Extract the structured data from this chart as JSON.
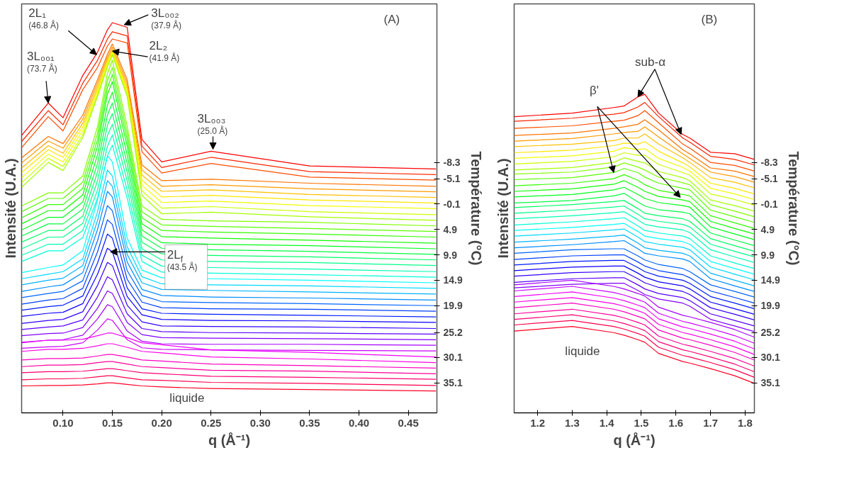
{
  "chart_data": [
    {
      "type": "line",
      "xlabel": "q (Å⁻¹)",
      "ylabel": "Température (°C)",
      "y2label": "Intensité (U.A.)",
      "x": [
        0.058,
        0.085,
        0.1,
        0.12,
        0.135,
        0.145,
        0.15,
        0.165,
        0.18,
        0.2,
        0.25,
        0.35,
        0.478
      ],
      "xlim": [
        0.058,
        0.479
      ],
      "xticks": [
        {
          "value": 0.1,
          "label": "0.10"
        },
        0.15,
        {
          "value": 0.2,
          "label": "0.20"
        },
        0.25,
        {
          "value": 0.3,
          "label": "0.30"
        },
        0.35,
        {
          "value": 0.4,
          "label": "0.40"
        },
        0.45
      ],
      "ylim": [
        41.0,
        -39.5
      ],
      "yticks": [
        -8.3,
        -5.1,
        -0.1,
        4.9,
        9.9,
        14.9,
        19.9,
        25.2,
        30.1,
        35.1
      ],
      "annotations": [
        {
          "text": "3L₀₀₁\n(73.7 Å)",
          "x": 0.085,
          "y": -20.0
        },
        {
          "text": "2L₁\n(46.8 Å)",
          "x": 0.134,
          "y": -29.5
        },
        {
          "text": "3L₀₀₂\n(37.9 Å)",
          "x": 0.162,
          "y": -35.4
        },
        {
          "text": "2L₂\n(41.9 Å)",
          "x": 0.15,
          "y": -30.2
        },
        {
          "text": "3L₀₀₃\n(25.0 Å)",
          "x": 0.252,
          "y": -10.9
        },
        {
          "text": "2L$_{f}$\n(43.5 Å)",
          "x": 0.148,
          "y": 9.3
        },
        "liquide",
        "(A)"
      ],
      "series": [
        {
          "color": "#ff0000",
          "values": [
            -13.6,
            -20.0,
            -17.1,
            -25.4,
            -30.0,
            -34.4,
            -35.8,
            -34.9,
            -12.8,
            -8.4,
            -10.5,
            -7.6,
            -7.0
          ]
        },
        {
          "color": "#ff2600",
          "values": [
            -12.4,
            -18.5,
            -15.7,
            -23.9,
            -28.4,
            -32.6,
            -34.0,
            -33.2,
            -11.5,
            -7.3,
            -9.3,
            -6.5,
            -5.9
          ]
        },
        {
          "color": "#ff4d00",
          "values": [
            -11.2,
            -17.3,
            -14.5,
            -22.6,
            -27.0,
            -31.2,
            -32.6,
            -31.8,
            -10.4,
            -6.2,
            -8.1,
            -5.4,
            -4.8
          ]
        },
        {
          "color": "#ff7300",
          "values": [
            -9.2,
            -13.4,
            -12.0,
            -17.6,
            -24.6,
            -29.6,
            -31.6,
            -24.6,
            -7.8,
            -4.7,
            -5.0,
            -4.2,
            -3.6
          ]
        },
        {
          "color": "#ff9900",
          "values": [
            -8.2,
            -12.5,
            -11.1,
            -16.8,
            -23.9,
            -29.0,
            -31.0,
            -23.9,
            -6.8,
            -3.6,
            -3.9,
            -3.1,
            -2.5
          ]
        },
        {
          "color": "#ffbf00",
          "values": [
            -7.2,
            -11.6,
            -10.1,
            -16.0,
            -23.2,
            -28.5,
            -30.5,
            -23.2,
            -5.8,
            -2.6,
            -2.9,
            -2.0,
            -1.4
          ]
        },
        {
          "color": "#ffe600",
          "values": [
            -6.3,
            -10.8,
            -9.3,
            -15.3,
            -22.7,
            -28.1,
            -30.2,
            -22.7,
            -4.8,
            -1.5,
            -1.8,
            -0.9,
            -0.3
          ]
        },
        {
          "color": "#f2ff00",
          "values": [
            -5.3,
            -9.9,
            -8.4,
            -14.6,
            -22.2,
            -27.8,
            -29.9,
            -22.2,
            -3.8,
            -0.4,
            -0.7,
            0.2,
            0.8
          ]
        },
        {
          "color": "#ccff00",
          "values": [
            -4.3,
            -9.1,
            -7.5,
            -13.8,
            -21.7,
            -27.4,
            -29.6,
            -21.7,
            -2.7,
            0.7,
            0.4,
            1.4,
            2.0
          ]
        },
        {
          "color": "#a6ff00",
          "values": [
            -3.4,
            -8.3,
            -6.7,
            -13.2,
            -21.3,
            -27.1,
            -29.4,
            -21.3,
            -1.8,
            1.8,
            1.5,
            2.4,
            3.1
          ]
        },
        {
          "color": "#80ff00",
          "values": [
            0.3,
            -2.3,
            -2.3,
            -5.6,
            -15.4,
            -25.8,
            -28.4,
            -15.4,
            0.3,
            2.9,
            3.2,
            3.5,
            4.2
          ]
        },
        {
          "color": "#59ff00",
          "values": [
            1.4,
            -1.2,
            -1.2,
            -4.4,
            -14.1,
            -24.4,
            -27.0,
            -14.1,
            1.4,
            4.0,
            4.3,
            4.7,
            5.3
          ]
        },
        {
          "color": "#33ff00",
          "values": [
            2.6,
            0.0,
            0.0,
            -3.2,
            -12.8,
            -23.0,
            -25.6,
            -12.8,
            2.6,
            5.1,
            5.4,
            5.8,
            6.4
          ]
        },
        {
          "color": "#0dff00",
          "values": [
            3.8,
            1.2,
            1.2,
            -1.9,
            -11.5,
            -21.7,
            -24.2,
            -11.5,
            3.8,
            6.3,
            6.6,
            7.0,
            7.6
          ]
        },
        {
          "color": "#00ff1a",
          "values": [
            5.0,
            2.5,
            2.5,
            -0.5,
            -9.8,
            -19.6,
            -22.1,
            -9.8,
            5.0,
            7.5,
            7.8,
            8.1,
            8.7
          ]
        },
        {
          "color": "#00ff40",
          "values": [
            6.2,
            3.8,
            3.8,
            0.9,
            -8.1,
            -17.6,
            -20.0,
            -8.1,
            6.2,
            8.6,
            8.9,
            9.2,
            9.8
          ]
        },
        {
          "color": "#00ff66",
          "values": [
            7.4,
            5.1,
            5.1,
            2.3,
            -6.4,
            -15.6,
            -17.9,
            -6.4,
            7.4,
            9.7,
            10.0,
            10.3,
            10.9
          ]
        },
        {
          "color": "#00ff8c",
          "values": [
            8.7,
            6.4,
            6.4,
            3.7,
            -4.7,
            -13.6,
            -15.8,
            -4.7,
            8.7,
            10.9,
            11.2,
            11.4,
            12.0
          ]
        },
        {
          "color": "#00ffb3",
          "values": [
            10.0,
            7.8,
            7.8,
            5.1,
            -2.9,
            -11.5,
            -13.7,
            -2.9,
            10.0,
            12.1,
            12.4,
            12.7,
            13.2
          ]
        },
        {
          "color": "#00ffd9",
          "values": [
            11.2,
            9.1,
            9.1,
            6.5,
            -1.3,
            -9.6,
            -11.7,
            -1.3,
            11.2,
            13.3,
            13.5,
            13.8,
            14.3
          ]
        },
        {
          "color": "#00ffff",
          "values": [
            13.4,
            12.4,
            11.9,
            9.1,
            -0.9,
            -9.6,
            -8.4,
            6.6,
            12.9,
            14.4,
            14.6,
            14.9,
            15.4
          ]
        },
        {
          "color": "#00d9ff",
          "values": [
            14.6,
            13.7,
            13.2,
            10.7,
            1.4,
            -6.8,
            -5.6,
            8.3,
            14.2,
            15.6,
            15.8,
            16.0,
            16.5
          ]
        },
        {
          "color": "#00b3ff",
          "values": [
            15.8,
            14.9,
            14.5,
            12.0,
            3.1,
            -4.7,
            -3.6,
            9.8,
            15.4,
            16.7,
            16.9,
            17.2,
            17.6
          ]
        },
        {
          "color": "#008cff",
          "values": [
            17.1,
            16.2,
            15.8,
            13.4,
            4.9,
            -2.6,
            -1.5,
            11.3,
            16.7,
            17.9,
            18.2,
            18.4,
            18.8
          ]
        },
        {
          "color": "#0066ff",
          "values": [
            18.3,
            17.5,
            17.1,
            15.0,
            7.1,
            0.2,
            1.2,
            13.0,
            17.9,
            19.1,
            19.3,
            19.5,
            19.9
          ]
        },
        {
          "color": "#0040ff",
          "values": [
            19.6,
            18.8,
            18.5,
            16.5,
            9.3,
            3.0,
            3.9,
            14.7,
            19.2,
            20.3,
            20.5,
            20.6,
            21.0
          ]
        },
        {
          "color": "#001aff",
          "values": [
            20.8,
            20.1,
            19.8,
            18.0,
            11.5,
            5.8,
            6.6,
            16.4,
            20.5,
            21.4,
            21.6,
            21.8,
            22.1
          ]
        },
        {
          "color": "#0d00ff",
          "values": [
            22.0,
            21.4,
            21.2,
            19.5,
            13.7,
            8.6,
            9.3,
            18.1,
            21.7,
            22.6,
            22.8,
            22.9,
            23.2
          ]
        },
        {
          "color": "#3300ff",
          "values": [
            23.4,
            22.8,
            22.6,
            21.1,
            15.9,
            11.4,
            12.0,
            19.8,
            23.1,
            23.9,
            24.0,
            24.1,
            24.4
          ]
        },
        {
          "color": "#5900ff",
          "values": [
            24.6,
            24.1,
            23.9,
            22.7,
            18.2,
            14.2,
            14.8,
            21.5,
            24.4,
            25.0,
            25.2,
            25.3,
            25.5
          ]
        },
        {
          "color": "#8000ff",
          "values": [
            25.8,
            25.4,
            25.3,
            24.2,
            20.4,
            17.0,
            17.5,
            23.2,
            25.6,
            26.2,
            26.3,
            26.4,
            26.6
          ]
        },
        {
          "color": "#a600ff",
          "values": [
            27.1,
            26.7,
            26.6,
            25.7,
            22.5,
            19.7,
            20.1,
            24.9,
            26.9,
            27.4,
            27.5,
            27.5,
            27.7
          ]
        },
        {
          "color": "#cc00ff",
          "values": [
            28.3,
            28.0,
            27.9,
            27.2,
            24.7,
            22.5,
            22.8,
            26.6,
            28.2,
            28.5,
            28.6,
            28.7,
            28.8
          ]
        },
        {
          "color": "#f200ff",
          "values": [
            27.2,
            26.7,
            26.7,
            26.5,
            25.8,
            25.3,
            25.3,
            26.2,
            27.2,
            27.6,
            28.6,
            29.1,
            30.0
          ]
        },
        {
          "color": "#ff00e6",
          "values": [
            28.9,
            28.5,
            28.5,
            28.3,
            27.8,
            27.4,
            27.4,
            28.1,
            28.9,
            29.2,
            30.0,
            30.4,
            31.1
          ]
        },
        {
          "color": "#ff00bf",
          "values": [
            30.6,
            30.3,
            30.3,
            30.2,
            29.8,
            29.5,
            29.5,
            30.0,
            30.6,
            30.8,
            31.4,
            31.7,
            32.2
          ]
        },
        {
          "color": "#ff0099",
          "values": [
            31.9,
            31.6,
            31.6,
            31.5,
            31.1,
            30.9,
            30.9,
            31.4,
            31.9,
            32.1,
            32.6,
            32.8,
            33.3
          ]
        },
        {
          "color": "#ff0073",
          "values": [
            33.1,
            32.9,
            32.9,
            32.8,
            32.5,
            32.3,
            32.3,
            32.7,
            33.1,
            33.3,
            33.8,
            34.0,
            34.4
          ]
        },
        {
          "color": "#ff004d",
          "values": [
            34.5,
            34.3,
            34.3,
            34.2,
            33.9,
            33.7,
            33.7,
            34.1,
            34.5,
            34.6,
            35.0,
            35.2,
            35.6
          ]
        },
        {
          "color": "#ff0026",
          "values": [
            35.7,
            35.6,
            35.6,
            35.5,
            35.3,
            35.1,
            35.1,
            35.4,
            35.7,
            35.9,
            36.2,
            36.4,
            36.7
          ]
        }
      ]
    },
    {
      "type": "line",
      "xlabel": "q (Å⁻¹)",
      "ylabel": "Température (°C)",
      "y2label": "Intensité (U.A.)",
      "x": [
        1.132,
        1.3,
        1.42,
        1.45,
        1.49,
        1.51,
        1.55,
        1.62,
        1.64,
        1.7,
        1.77,
        1.827
      ],
      "xlim": [
        1.132,
        1.827
      ],
      "xticks": [
        1.2,
        1.3,
        1.4,
        1.5,
        1.6,
        1.7,
        1.8
      ],
      "ylim": [
        41.0,
        -39.5
      ],
      "yticks": [
        -8.3,
        -5.1,
        -0.1,
        4.9,
        9.9,
        14.9,
        19.9,
        25.2,
        30.1,
        35.1
      ],
      "annotations": [
        {
          "text": "sub-α",
          "x": 1.49,
          "y": -21.2
        },
        {
          "text": "β'",
          "x": 1.42,
          "y": -6.3
        },
        "liquide",
        "(B)"
      ],
      "series": [
        {
          "color": "#ff0000",
          "values": [
            -17.3,
            -18.0,
            -19.1,
            -19.4,
            -21.2,
            -21.7,
            -18.0,
            -13.8,
            -13.1,
            -10.3,
            -10.0,
            -8.9
          ]
        },
        {
          "color": "#ff2600",
          "values": [
            -16.4,
            -17.0,
            -17.8,
            -18.1,
            -19.2,
            -20.1,
            -17.3,
            -13.1,
            -12.3,
            -9.5,
            -8.9,
            -7.8
          ]
        },
        {
          "color": "#ff4d00",
          "values": [
            -15.0,
            -15.5,
            -16.4,
            -16.6,
            -17.5,
            -18.5,
            -16.1,
            -11.9,
            -11.1,
            -8.3,
            -7.7,
            -6.6
          ]
        },
        {
          "color": "#ff7300",
          "values": [
            -13.6,
            -14.1,
            -15.0,
            -15.3,
            -15.8,
            -16.7,
            -14.7,
            -10.8,
            -10.0,
            -7.2,
            -6.6,
            -5.5
          ]
        },
        {
          "color": "#ff9900",
          "values": [
            -12.5,
            -13.0,
            -13.9,
            -14.2,
            -14.4,
            -15.3,
            -13.3,
            -10.0,
            -9.1,
            -6.4,
            -5.5,
            -4.4
          ]
        },
        {
          "color": "#ffbf00",
          "values": [
            -11.4,
            -11.9,
            -12.6,
            -13.1,
            -13.1,
            -13.9,
            -11.9,
            -9.2,
            -8.3,
            -5.3,
            -4.4,
            -3.3
          ]
        },
        {
          "color": "#ffe600",
          "values": [
            -10.2,
            -10.7,
            -11.6,
            -12.1,
            -11.9,
            -12.4,
            -10.5,
            -8.2,
            -7.4,
            -4.2,
            -3.2,
            -2.1
          ]
        },
        {
          "color": "#f2ff00",
          "values": [
            -9.1,
            -9.6,
            -10.5,
            -11.2,
            -10.8,
            -11.0,
            -9.1,
            -7.3,
            -6.6,
            -3.2,
            -2.1,
            -1.0
          ]
        },
        {
          "color": "#ccff00",
          "values": [
            -8.0,
            -8.5,
            -9.4,
            -10.2,
            -9.7,
            -9.7,
            -7.9,
            -6.3,
            -5.8,
            -2.1,
            -1.0,
            0.1
          ]
        },
        {
          "color": "#a6ff00",
          "values": [
            -6.8,
            -7.3,
            -8.3,
            -9.2,
            -8.5,
            -8.2,
            -6.5,
            -5.3,
            -4.7,
            -0.9,
            0.2,
            1.3
          ]
        },
        {
          "color": "#80ff00",
          "values": [
            -6.0,
            -6.4,
            -7.4,
            -8.2,
            -7.4,
            -6.8,
            -5.4,
            -4.3,
            -3.9,
            0.0,
            1.3,
            2.4
          ]
        },
        {
          "color": "#59ff00",
          "values": [
            -4.9,
            -5.3,
            -6.3,
            -7.1,
            -6.3,
            -5.4,
            -4.2,
            -3.2,
            -2.9,
            1.1,
            2.4,
            3.5
          ]
        },
        {
          "color": "#33ff00",
          "values": [
            -3.7,
            -4.2,
            -5.1,
            -5.9,
            -4.8,
            -3.9,
            -2.8,
            -2.0,
            -1.7,
            2.2,
            3.6,
            4.7
          ]
        },
        {
          "color": "#0dff00",
          "values": [
            -2.6,
            -3.1,
            -4.0,
            -4.7,
            -3.4,
            -2.6,
            -1.6,
            -0.9,
            -0.6,
            3.3,
            4.7,
            5.8
          ]
        },
        {
          "color": "#00ff1a",
          "values": [
            -1.5,
            -2.0,
            -2.9,
            -3.4,
            -2.0,
            -1.2,
            -0.4,
            0.2,
            0.5,
            4.4,
            5.8,
            6.9
          ]
        },
        {
          "color": "#00ff40",
          "values": [
            -0.3,
            -0.8,
            -1.7,
            -2.2,
            -0.5,
            0.3,
            1.0,
            1.5,
            1.8,
            5.6,
            7.0,
            8.1
          ]
        },
        {
          "color": "#00ff66",
          "values": [
            0.6,
            0.0,
            -0.6,
            -0.8,
            0.8,
            1.7,
            2.2,
            2.8,
            3.3,
            6.7,
            8.1,
            9.2
          ]
        },
        {
          "color": "#00ff8c",
          "values": [
            1.7,
            1.1,
            0.5,
            0.3,
            1.9,
            2.8,
            3.3,
            3.9,
            4.4,
            7.8,
            9.2,
            10.3
          ]
        },
        {
          "color": "#00ffb3",
          "values": [
            2.8,
            2.2,
            1.6,
            1.4,
            3.0,
            3.9,
            4.4,
            5.0,
            5.5,
            8.9,
            10.3,
            11.4
          ]
        },
        {
          "color": "#00ffd9",
          "values": [
            4.0,
            3.4,
            2.8,
            2.6,
            4.2,
            5.1,
            5.6,
            6.2,
            6.7,
            10.1,
            11.5,
            12.6
          ]
        },
        {
          "color": "#00ffff",
          "values": [
            5.1,
            4.5,
            3.9,
            3.7,
            5.3,
            6.2,
            6.7,
            7.3,
            7.8,
            11.2,
            12.6,
            13.7
          ]
        },
        {
          "color": "#00d9ff",
          "values": [
            6.2,
            5.6,
            5.0,
            4.8,
            6.4,
            7.3,
            7.8,
            8.4,
            8.9,
            12.3,
            13.7,
            14.8
          ]
        },
        {
          "color": "#00b3ff",
          "values": [
            7.4,
            6.8,
            6.2,
            6.0,
            7.6,
            8.5,
            9.0,
            9.6,
            10.1,
            13.5,
            14.9,
            16.0
          ]
        },
        {
          "color": "#008cff",
          "values": [
            8.5,
            7.9,
            7.3,
            7.1,
            8.7,
            9.6,
            10.1,
            10.7,
            11.2,
            14.6,
            16.0,
            17.1
          ]
        },
        {
          "color": "#0066ff",
          "values": [
            9.6,
            8.9,
            8.7,
            8.7,
            10.1,
            10.9,
            11.8,
            12.6,
            13.2,
            15.8,
            17.1,
            18.2
          ]
        },
        {
          "color": "#0040ff",
          "values": [
            10.8,
            10.1,
            9.9,
            9.9,
            11.3,
            12.1,
            13.0,
            13.8,
            14.4,
            17.0,
            18.3,
            19.4
          ]
        },
        {
          "color": "#001aff",
          "values": [
            11.9,
            11.2,
            11.0,
            11.0,
            12.4,
            13.2,
            14.1,
            14.9,
            15.5,
            18.1,
            19.4,
            20.5
          ]
        },
        {
          "color": "#0d00ff",
          "values": [
            13.0,
            12.3,
            12.1,
            12.1,
            13.5,
            14.3,
            15.2,
            16.0,
            16.6,
            19.2,
            20.5,
            21.6
          ]
        },
        {
          "color": "#3300ff",
          "values": [
            14.1,
            13.4,
            13.2,
            13.2,
            14.6,
            15.4,
            16.3,
            17.1,
            17.7,
            20.3,
            21.6,
            22.7
          ]
        },
        {
          "color": "#5900ff",
          "values": [
            15.3,
            14.6,
            14.4,
            14.4,
            15.8,
            16.6,
            17.5,
            18.3,
            18.9,
            21.5,
            22.8,
            23.9
          ]
        },
        {
          "color": "#8000ff",
          "values": [
            16.4,
            15.7,
            15.5,
            15.5,
            16.9,
            17.7,
            18.6,
            19.4,
            20.0,
            22.6,
            23.9,
            25.0
          ]
        },
        {
          "color": "#a600ff",
          "values": [
            15.8,
            14.9,
            16.1,
            16.6,
            17.5,
            18.0,
            20.2,
            21.8,
            22.1,
            23.2,
            24.6,
            26.1
          ]
        },
        {
          "color": "#cc00ff",
          "values": [
            17.0,
            16.1,
            17.3,
            17.8,
            18.7,
            19.2,
            21.4,
            23.0,
            23.3,
            24.4,
            25.8,
            27.3
          ]
        },
        {
          "color": "#f200ff",
          "values": [
            18.1,
            17.2,
            18.4,
            18.9,
            19.8,
            20.3,
            22.5,
            24.1,
            24.4,
            25.5,
            26.9,
            28.4
          ]
        },
        {
          "color": "#ff00e6",
          "values": [
            19.2,
            18.3,
            19.5,
            20.0,
            20.9,
            21.4,
            23.6,
            25.2,
            25.5,
            26.6,
            28.0,
            29.5
          ]
        },
        {
          "color": "#ff00bf",
          "values": [
            20.3,
            19.4,
            20.6,
            21.1,
            22.0,
            22.5,
            24.7,
            26.3,
            26.6,
            27.7,
            29.1,
            30.6
          ]
        },
        {
          "color": "#ff0099",
          "values": [
            21.5,
            20.6,
            21.8,
            22.3,
            23.2,
            23.7,
            25.9,
            27.5,
            27.8,
            28.9,
            30.3,
            31.8
          ]
        },
        {
          "color": "#ff0073",
          "values": [
            22.6,
            21.7,
            22.9,
            23.4,
            24.3,
            24.8,
            27.0,
            28.6,
            28.9,
            30.0,
            31.4,
            32.9
          ]
        },
        {
          "color": "#ff004d",
          "values": [
            23.7,
            22.8,
            24.0,
            24.5,
            25.4,
            25.9,
            28.1,
            29.7,
            30.0,
            31.1,
            32.5,
            34.0
          ]
        },
        {
          "color": "#ff0026",
          "values": [
            24.9,
            24.0,
            25.2,
            25.7,
            26.6,
            27.1,
            29.3,
            30.9,
            31.2,
            32.3,
            33.7,
            35.2
          ]
        }
      ]
    }
  ]
}
